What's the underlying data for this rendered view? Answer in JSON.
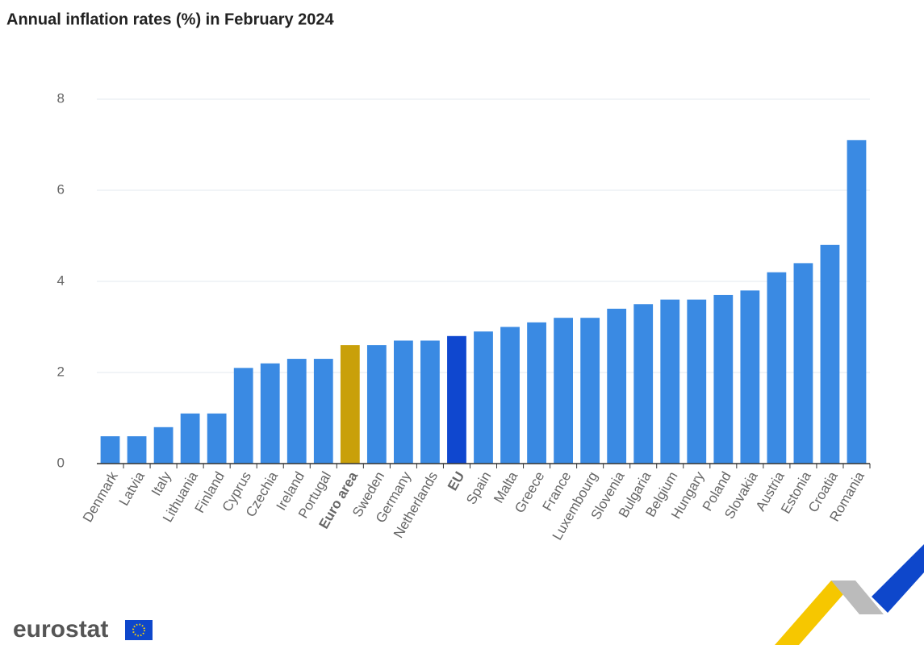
{
  "chart_data": {
    "type": "bar",
    "title": "Annual inflation rates (%) in February 2024",
    "categories": [
      "Denmark",
      "Latvia",
      "Italy",
      "Lithuania",
      "Finland",
      "Cyprus",
      "Czechia",
      "Ireland",
      "Portugal",
      "Euro area",
      "Sweden",
      "Germany",
      "Netherlands",
      "EU",
      "Spain",
      "Malta",
      "Greece",
      "France",
      "Luxembourg",
      "Slovenia",
      "Bulgaria",
      "Belgium",
      "Hungary",
      "Poland",
      "Slovakia",
      "Austria",
      "Estonia",
      "Croatia",
      "Romania"
    ],
    "values": [
      0.6,
      0.6,
      0.8,
      1.1,
      1.1,
      2.1,
      2.2,
      2.3,
      2.3,
      2.6,
      2.6,
      2.7,
      2.7,
      2.8,
      2.9,
      3.0,
      3.1,
      3.2,
      3.2,
      3.4,
      3.5,
      3.6,
      3.6,
      3.7,
      3.8,
      4.2,
      4.4,
      4.8,
      7.1
    ],
    "color": "#3a8ae3",
    "colors": [
      "#3a8ae3",
      "#3a8ae3",
      "#3a8ae3",
      "#3a8ae3",
      "#3a8ae3",
      "#3a8ae3",
      "#3a8ae3",
      "#3a8ae3",
      "#3a8ae3",
      "#c9a00a",
      "#3a8ae3",
      "#3a8ae3",
      "#3a8ae3",
      "#0f47cf",
      "#3a8ae3",
      "#3a8ae3",
      "#3a8ae3",
      "#3a8ae3",
      "#3a8ae3",
      "#3a8ae3",
      "#3a8ae3",
      "#3a8ae3",
      "#3a8ae3",
      "#3a8ae3",
      "#3a8ae3",
      "#3a8ae3",
      "#3a8ae3",
      "#3a8ae3",
      "#3a8ae3"
    ],
    "ylim": [
      0,
      8
    ],
    "yticks": [
      0,
      2,
      4,
      6,
      8
    ],
    "grid": true
  },
  "footer": {
    "logo": "eurostat"
  }
}
